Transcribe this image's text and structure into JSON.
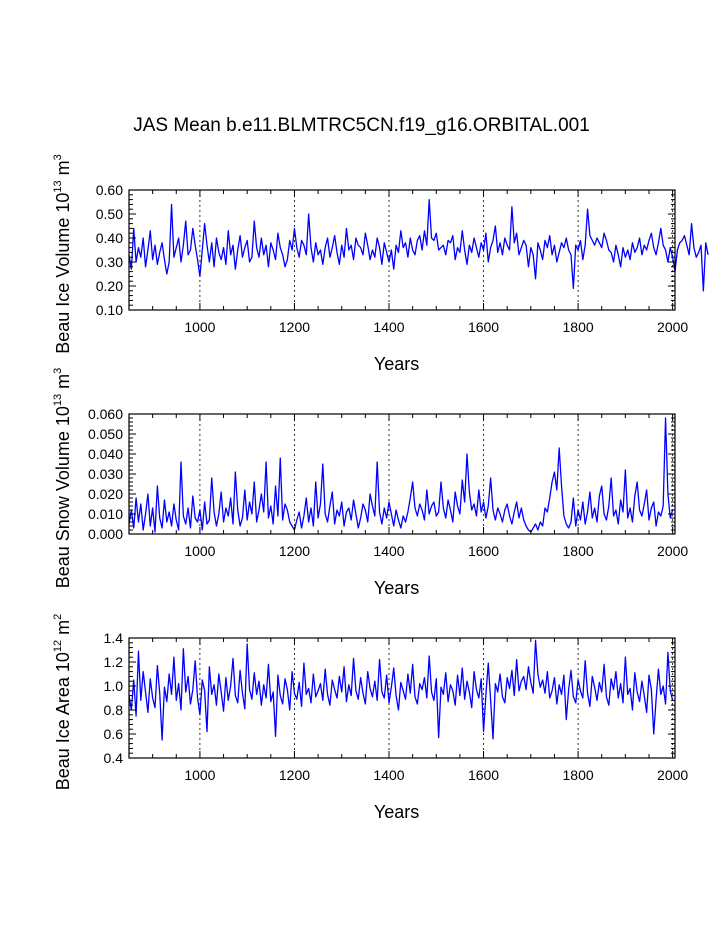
{
  "title": "JAS Mean b.e11.BLMTRC5CN.f19_g16.ORBITAL.001",
  "colors": {
    "line": "#0000ff",
    "axis": "#000000",
    "grid": "#000000"
  },
  "chart_data": [
    {
      "type": "line",
      "xlabel": "Years",
      "ylabel": {
        "text": "Beau Ice Volume 10",
        "exp": "13",
        "unit": " m",
        "unit_exp": "3"
      },
      "xlim": [
        850,
        2005
      ],
      "ylim": [
        0.1,
        0.6
      ],
      "xticks": [
        1000,
        1200,
        1400,
        1600,
        1800,
        2000
      ],
      "yticks": [
        "0.10",
        "0.20",
        "0.30",
        "0.40",
        "0.50",
        "0.60"
      ],
      "grid_x": [
        1000,
        1200,
        1400,
        1600,
        1800,
        2000
      ],
      "series": [
        {
          "x_start": 850,
          "x_step": 5,
          "values": [
            0.33,
            0.27,
            0.44,
            0.3,
            0.36,
            0.32,
            0.4,
            0.28,
            0.35,
            0.43,
            0.31,
            0.37,
            0.29,
            0.34,
            0.38,
            0.31,
            0.25,
            0.3,
            0.54,
            0.32,
            0.36,
            0.4,
            0.3,
            0.37,
            0.47,
            0.33,
            0.35,
            0.44,
            0.37,
            0.31,
            0.24,
            0.35,
            0.46,
            0.37,
            0.3,
            0.38,
            0.28,
            0.4,
            0.34,
            0.31,
            0.36,
            0.29,
            0.43,
            0.33,
            0.37,
            0.27,
            0.35,
            0.41,
            0.32,
            0.36,
            0.39,
            0.3,
            0.32,
            0.47,
            0.36,
            0.32,
            0.4,
            0.33,
            0.37,
            0.28,
            0.38,
            0.35,
            0.31,
            0.42,
            0.36,
            0.33,
            0.28,
            0.31,
            0.39,
            0.35,
            0.44,
            0.36,
            0.32,
            0.39,
            0.37,
            0.33,
            0.5,
            0.36,
            0.3,
            0.38,
            0.33,
            0.35,
            0.29,
            0.36,
            0.4,
            0.32,
            0.36,
            0.41,
            0.34,
            0.29,
            0.37,
            0.32,
            0.44,
            0.35,
            0.37,
            0.31,
            0.4,
            0.37,
            0.36,
            0.33,
            0.42,
            0.37,
            0.31,
            0.35,
            0.32,
            0.4,
            0.36,
            0.29,
            0.38,
            0.34,
            0.3,
            0.35,
            0.27,
            0.37,
            0.34,
            0.43,
            0.36,
            0.38,
            0.32,
            0.4,
            0.35,
            0.33,
            0.39,
            0.41,
            0.35,
            0.43,
            0.37,
            0.56,
            0.4,
            0.39,
            0.42,
            0.35,
            0.36,
            0.37,
            0.33,
            0.39,
            0.38,
            0.41,
            0.31,
            0.36,
            0.34,
            0.43,
            0.35,
            0.29,
            0.37,
            0.34,
            0.4,
            0.36,
            0.32,
            0.38,
            0.35,
            0.42,
            0.3,
            0.36,
            0.39,
            0.45,
            0.34,
            0.38,
            0.33,
            0.4,
            0.37,
            0.35,
            0.53,
            0.38,
            0.42,
            0.33,
            0.36,
            0.39,
            0.37,
            0.28,
            0.36,
            0.33,
            0.23,
            0.38,
            0.35,
            0.31,
            0.39,
            0.36,
            0.41,
            0.33,
            0.37,
            0.3,
            0.34,
            0.38,
            0.36,
            0.4,
            0.35,
            0.33,
            0.19,
            0.37,
            0.35,
            0.39,
            0.31,
            0.37,
            0.52,
            0.41,
            0.39,
            0.37,
            0.4,
            0.38,
            0.36,
            0.42,
            0.39,
            0.35,
            0.34,
            0.3,
            0.37,
            0.33,
            0.28,
            0.36,
            0.32,
            0.35,
            0.31,
            0.38,
            0.34,
            0.36,
            0.4,
            0.33,
            0.37,
            0.35,
            0.39,
            0.42,
            0.36,
            0.33,
            0.38,
            0.44,
            0.37,
            0.35,
            0.3,
            0.36,
            0.32,
            0.26,
            0.35,
            0.38,
            0.39,
            0.41,
            0.37,
            0.33,
            0.46,
            0.36,
            0.32,
            0.34,
            0.37,
            0.18,
            0.38,
            0.33
          ]
        }
      ]
    },
    {
      "type": "line",
      "xlabel": "Years",
      "ylabel": {
        "text": "Beau Snow Volume 10",
        "exp": "13",
        "unit": " m",
        "unit_exp": "3"
      },
      "xlim": [
        850,
        2005
      ],
      "ylim": [
        0.0,
        0.06
      ],
      "xticks": [
        1000,
        1200,
        1400,
        1600,
        1800,
        2000
      ],
      "yticks": [
        "0.000",
        "0.010",
        "0.020",
        "0.030",
        "0.040",
        "0.050",
        "0.060"
      ],
      "grid_x": [
        1000,
        1200,
        1400,
        1600,
        1800,
        2000
      ],
      "series": [
        {
          "x_start": 850,
          "x_step": 5,
          "values": [
            0.005,
            0.012,
            0.003,
            0.018,
            0.006,
            0.015,
            0.002,
            0.01,
            0.02,
            0.004,
            0.013,
            0.001,
            0.024,
            0.008,
            0.003,
            0.017,
            0.006,
            0.011,
            0.004,
            0.015,
            0.007,
            0.002,
            0.036,
            0.009,
            0.005,
            0.013,
            0.003,
            0.019,
            0.008,
            0.006,
            0.012,
            0.002,
            0.016,
            0.005,
            0.007,
            0.028,
            0.011,
            0.004,
            0.01,
            0.021,
            0.006,
            0.013,
            0.009,
            0.018,
            0.005,
            0.031,
            0.012,
            0.004,
            0.008,
            0.022,
            0.007,
            0.016,
            0.01,
            0.026,
            0.006,
            0.012,
            0.02,
            0.011,
            0.036,
            0.008,
            0.014,
            0.005,
            0.024,
            0.009,
            0.038,
            0.007,
            0.015,
            0.012,
            0.006,
            0.004,
            0.002,
            0.007,
            0.011,
            0.003,
            0.009,
            0.018,
            0.006,
            0.013,
            0.004,
            0.026,
            0.008,
            0.015,
            0.035,
            0.01,
            0.006,
            0.014,
            0.021,
            0.005,
            0.012,
            0.009,
            0.016,
            0.004,
            0.011,
            0.013,
            0.007,
            0.017,
            0.01,
            0.003,
            0.008,
            0.015,
            0.012,
            0.006,
            0.02,
            0.014,
            0.009,
            0.036,
            0.011,
            0.005,
            0.013,
            0.008,
            0.016,
            0.01,
            0.004,
            0.012,
            0.007,
            0.003,
            0.009,
            0.006,
            0.011,
            0.018,
            0.026,
            0.013,
            0.009,
            0.015,
            0.012,
            0.007,
            0.022,
            0.01,
            0.014,
            0.016,
            0.009,
            0.011,
            0.026,
            0.013,
            0.008,
            0.017,
            0.012,
            0.006,
            0.021,
            0.014,
            0.01,
            0.027,
            0.016,
            0.04,
            0.021,
            0.012,
            0.015,
            0.009,
            0.022,
            0.011,
            0.016,
            0.008,
            0.014,
            0.028,
            0.012,
            0.007,
            0.013,
            0.01,
            0.006,
            0.012,
            0.015,
            0.009,
            0.005,
            0.011,
            0.016,
            0.008,
            0.013,
            0.007,
            0.004,
            0.002,
            0.001,
            0.003,
            0.005,
            0.002,
            0.006,
            0.004,
            0.013,
            0.011,
            0.018,
            0.026,
            0.031,
            0.022,
            0.043,
            0.024,
            0.009,
            0.005,
            0.003,
            0.006,
            0.018,
            0.004,
            0.012,
            0.007,
            0.016,
            0.005,
            0.011,
            0.021,
            0.008,
            0.013,
            0.006,
            0.019,
            0.024,
            0.01,
            0.007,
            0.014,
            0.028,
            0.009,
            0.012,
            0.005,
            0.017,
            0.011,
            0.032,
            0.008,
            0.013,
            0.006,
            0.019,
            0.026,
            0.012,
            0.009,
            0.015,
            0.022,
            0.007,
            0.013,
            0.016,
            0.004,
            0.011,
            0.009,
            0.014,
            0.058,
            0.02,
            0.008,
            0.012
          ]
        }
      ]
    },
    {
      "type": "line",
      "xlabel": "Years",
      "ylabel": {
        "text": "Beau Ice Area 10",
        "exp": "12",
        "unit": " m",
        "unit_exp": "2"
      },
      "xlim": [
        850,
        2005
      ],
      "ylim": [
        0.4,
        1.4
      ],
      "xticks": [
        1000,
        1200,
        1400,
        1600,
        1800,
        2000
      ],
      "yticks": [
        "0.4",
        "0.6",
        "0.8",
        "1.0",
        "1.2",
        "1.4"
      ],
      "grid_x": [
        1000,
        1200,
        1400,
        1600,
        1800,
        2000
      ],
      "series": [
        {
          "x_start": 850,
          "x_step": 5,
          "values": [
            0.92,
            0.8,
            1.05,
            0.75,
            1.29,
            0.88,
            1.12,
            0.95,
            0.78,
            1.06,
            0.9,
            0.82,
            1.17,
            0.94,
            0.55,
            0.99,
            0.87,
            1.1,
            0.93,
            1.24,
            0.88,
            1.02,
            0.8,
            1.31,
            0.95,
            1.08,
            0.85,
            0.97,
            1.21,
            0.9,
            0.76,
            1.05,
            0.96,
            0.62,
            1.16,
            0.93,
            1.01,
            0.84,
            1.1,
            0.95,
            0.79,
            1.07,
            0.88,
            1.0,
            1.23,
            0.92,
            0.86,
            1.13,
            0.94,
            0.81,
            1.35,
            0.97,
            0.89,
            1.11,
            0.93,
            1.04,
            0.84,
            1.01,
            0.9,
            1.18,
            0.87,
            0.95,
            0.58,
            1.09,
            0.92,
            0.85,
            1.06,
            0.97,
            0.8,
            1.12,
            0.94,
            0.89,
            1.03,
            0.83,
            1.19,
            0.93,
            0.98,
            0.86,
            1.1,
            0.91,
            0.96,
            1.02,
            0.88,
            1.14,
            0.93,
            0.84,
            1.05,
            0.97,
            0.9,
            1.08,
            0.95,
            1.16,
            0.87,
            1.01,
            0.92,
            1.23,
            0.96,
            0.89,
            1.07,
            0.94,
            0.85,
            1.12,
            0.98,
            0.91,
            1.04,
            0.88,
            1.22,
            0.95,
            0.9,
            1.09,
            0.86,
            0.99,
            1.15,
            0.92,
            0.8,
            1.03,
            0.96,
            0.89,
            1.1,
            0.94,
            1.18,
            0.91,
            0.85,
            1.02,
            0.97,
            1.07,
            0.9,
            1.25,
            0.95,
            0.88,
            1.06,
            0.57,
            0.99,
            0.93,
            1.11,
            0.87,
            1.01,
            0.96,
            0.84,
            1.09,
            0.92,
            1.15,
            0.89,
            1.04,
            0.95,
            0.82,
            1.12,
            0.97,
            0.9,
            1.06,
            0.62,
            0.93,
            1.19,
            0.88,
            0.56,
            1.02,
            0.95,
            1.1,
            0.91,
            0.86,
            1.07,
            0.98,
            1.13,
            0.92,
            1.22,
            0.96,
            1.04,
            1.08,
            0.97,
            1.16,
            1.03,
            0.94,
            1.38,
            1.1,
            0.99,
            1.05,
            0.94,
            1.12,
            0.9,
            0.96,
            1.07,
            0.85,
            1.01,
            0.93,
            1.09,
            0.72,
            0.97,
            1.13,
            0.91,
            0.86,
            1.05,
            0.96,
            0.9,
            1.21,
            0.94,
            0.83,
            1.08,
            0.99,
            0.88,
            1.03,
            0.95,
            1.18,
            0.91,
            0.84,
            1.06,
            0.97,
            1.12,
            0.9,
            1.02,
            0.86,
            1.24,
            0.93,
            0.98,
            0.8,
            1.11,
            0.95,
            0.87,
            1.04,
            0.92,
            0.78,
            1.09,
            0.97,
            0.6,
            0.89,
            1.14,
            0.93,
            1.0,
            0.85,
            1.28,
            0.96,
            0.88
          ]
        }
      ]
    }
  ]
}
